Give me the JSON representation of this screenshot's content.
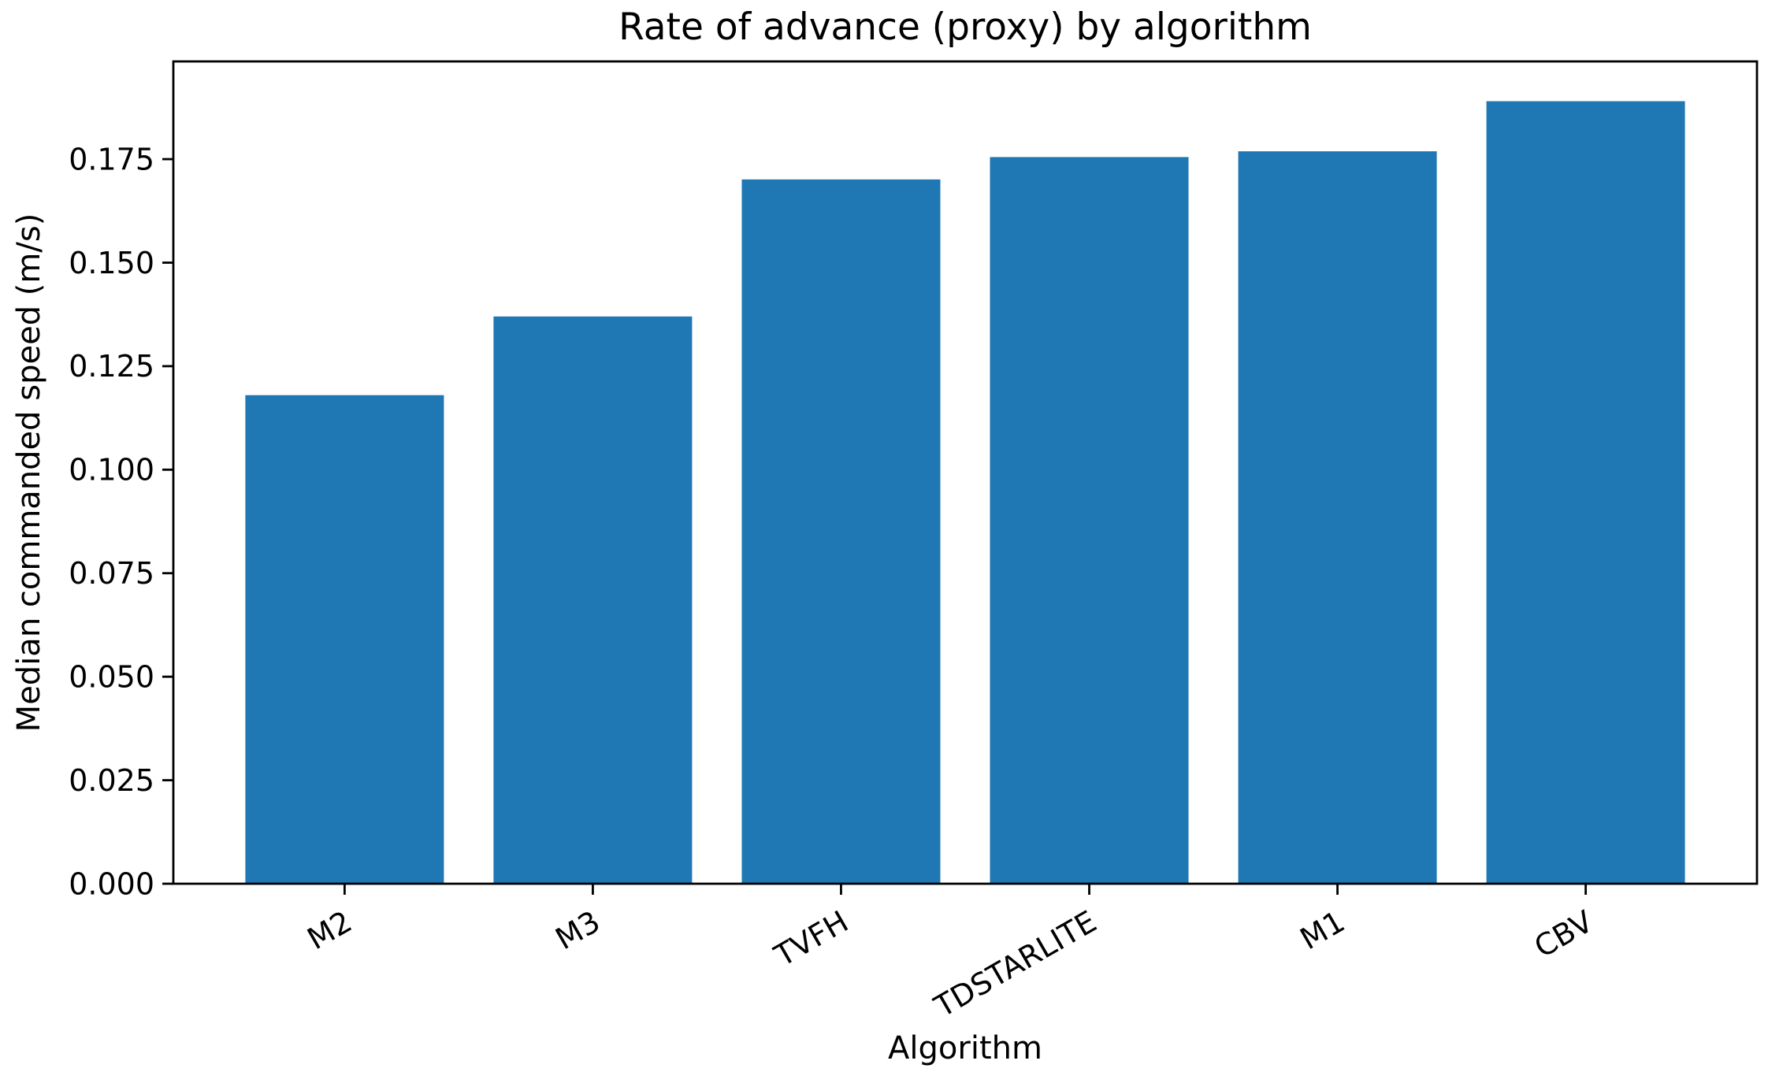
{
  "chart_data": {
    "type": "bar",
    "title": "Rate of advance (proxy) by algorithm",
    "xlabel": "Algorithm",
    "ylabel": "Median commanded speed (m/s)",
    "categories": [
      "M2",
      "M3",
      "TVFH",
      "TDSTARLITE",
      "M1",
      "CBV"
    ],
    "values": [
      0.118,
      0.137,
      0.1701,
      0.1755,
      0.1769,
      0.189
    ],
    "ylim": [
      0,
      0.1986
    ],
    "yticks": [
      0,
      0.025,
      0.05,
      0.075,
      0.1,
      0.125,
      0.15,
      0.175
    ],
    "ytick_labels": [
      "0.000",
      "0.025",
      "0.050",
      "0.075",
      "0.100",
      "0.125",
      "0.150",
      "0.175"
    ],
    "xtick_rotation_deg": 30,
    "bar_width_fraction": 0.8,
    "bar_color": "#1f77b4",
    "axis_color": "#000000",
    "text_color": "#000000",
    "background_color": "#ffffff",
    "grid": false,
    "legend_position": "none"
  }
}
